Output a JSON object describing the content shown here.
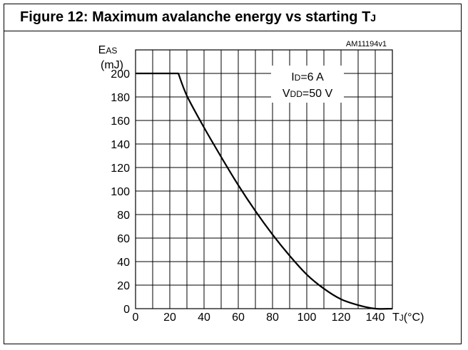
{
  "figure": {
    "title_main": "Figure 12: Maximum avalanche energy vs starting T",
    "title_sub": "J"
  },
  "chart_data": {
    "type": "line",
    "title": "Figure 12: Maximum avalanche energy vs starting TJ",
    "code": "AM11194v1",
    "ylabel": {
      "main": "E",
      "sub": "AS",
      "unit": "(mJ)"
    },
    "xlabel": {
      "main": "T",
      "sub": "J",
      "unit": "(°C)"
    },
    "xlim": [
      0,
      150
    ],
    "ylim": [
      0,
      220
    ],
    "x_ticks": [
      0,
      20,
      40,
      60,
      80,
      100,
      120,
      140
    ],
    "y_ticks": [
      0,
      20,
      40,
      60,
      80,
      100,
      120,
      140,
      160,
      180,
      200
    ],
    "grid": true,
    "annotations": [
      {
        "main": "I",
        "sub": "D",
        "rest": "=6 A"
      },
      {
        "main": "V",
        "sub": "DD",
        "rest": "=50 V"
      }
    ],
    "series": [
      {
        "x": [
          0,
          25,
          30,
          40,
          50,
          60,
          70,
          80,
          90,
          100,
          110,
          120,
          130,
          140,
          150
        ],
        "y": [
          200,
          200,
          181,
          154,
          129,
          105,
          83,
          63,
          45,
          29,
          17,
          8,
          3,
          0,
          0
        ]
      }
    ]
  }
}
